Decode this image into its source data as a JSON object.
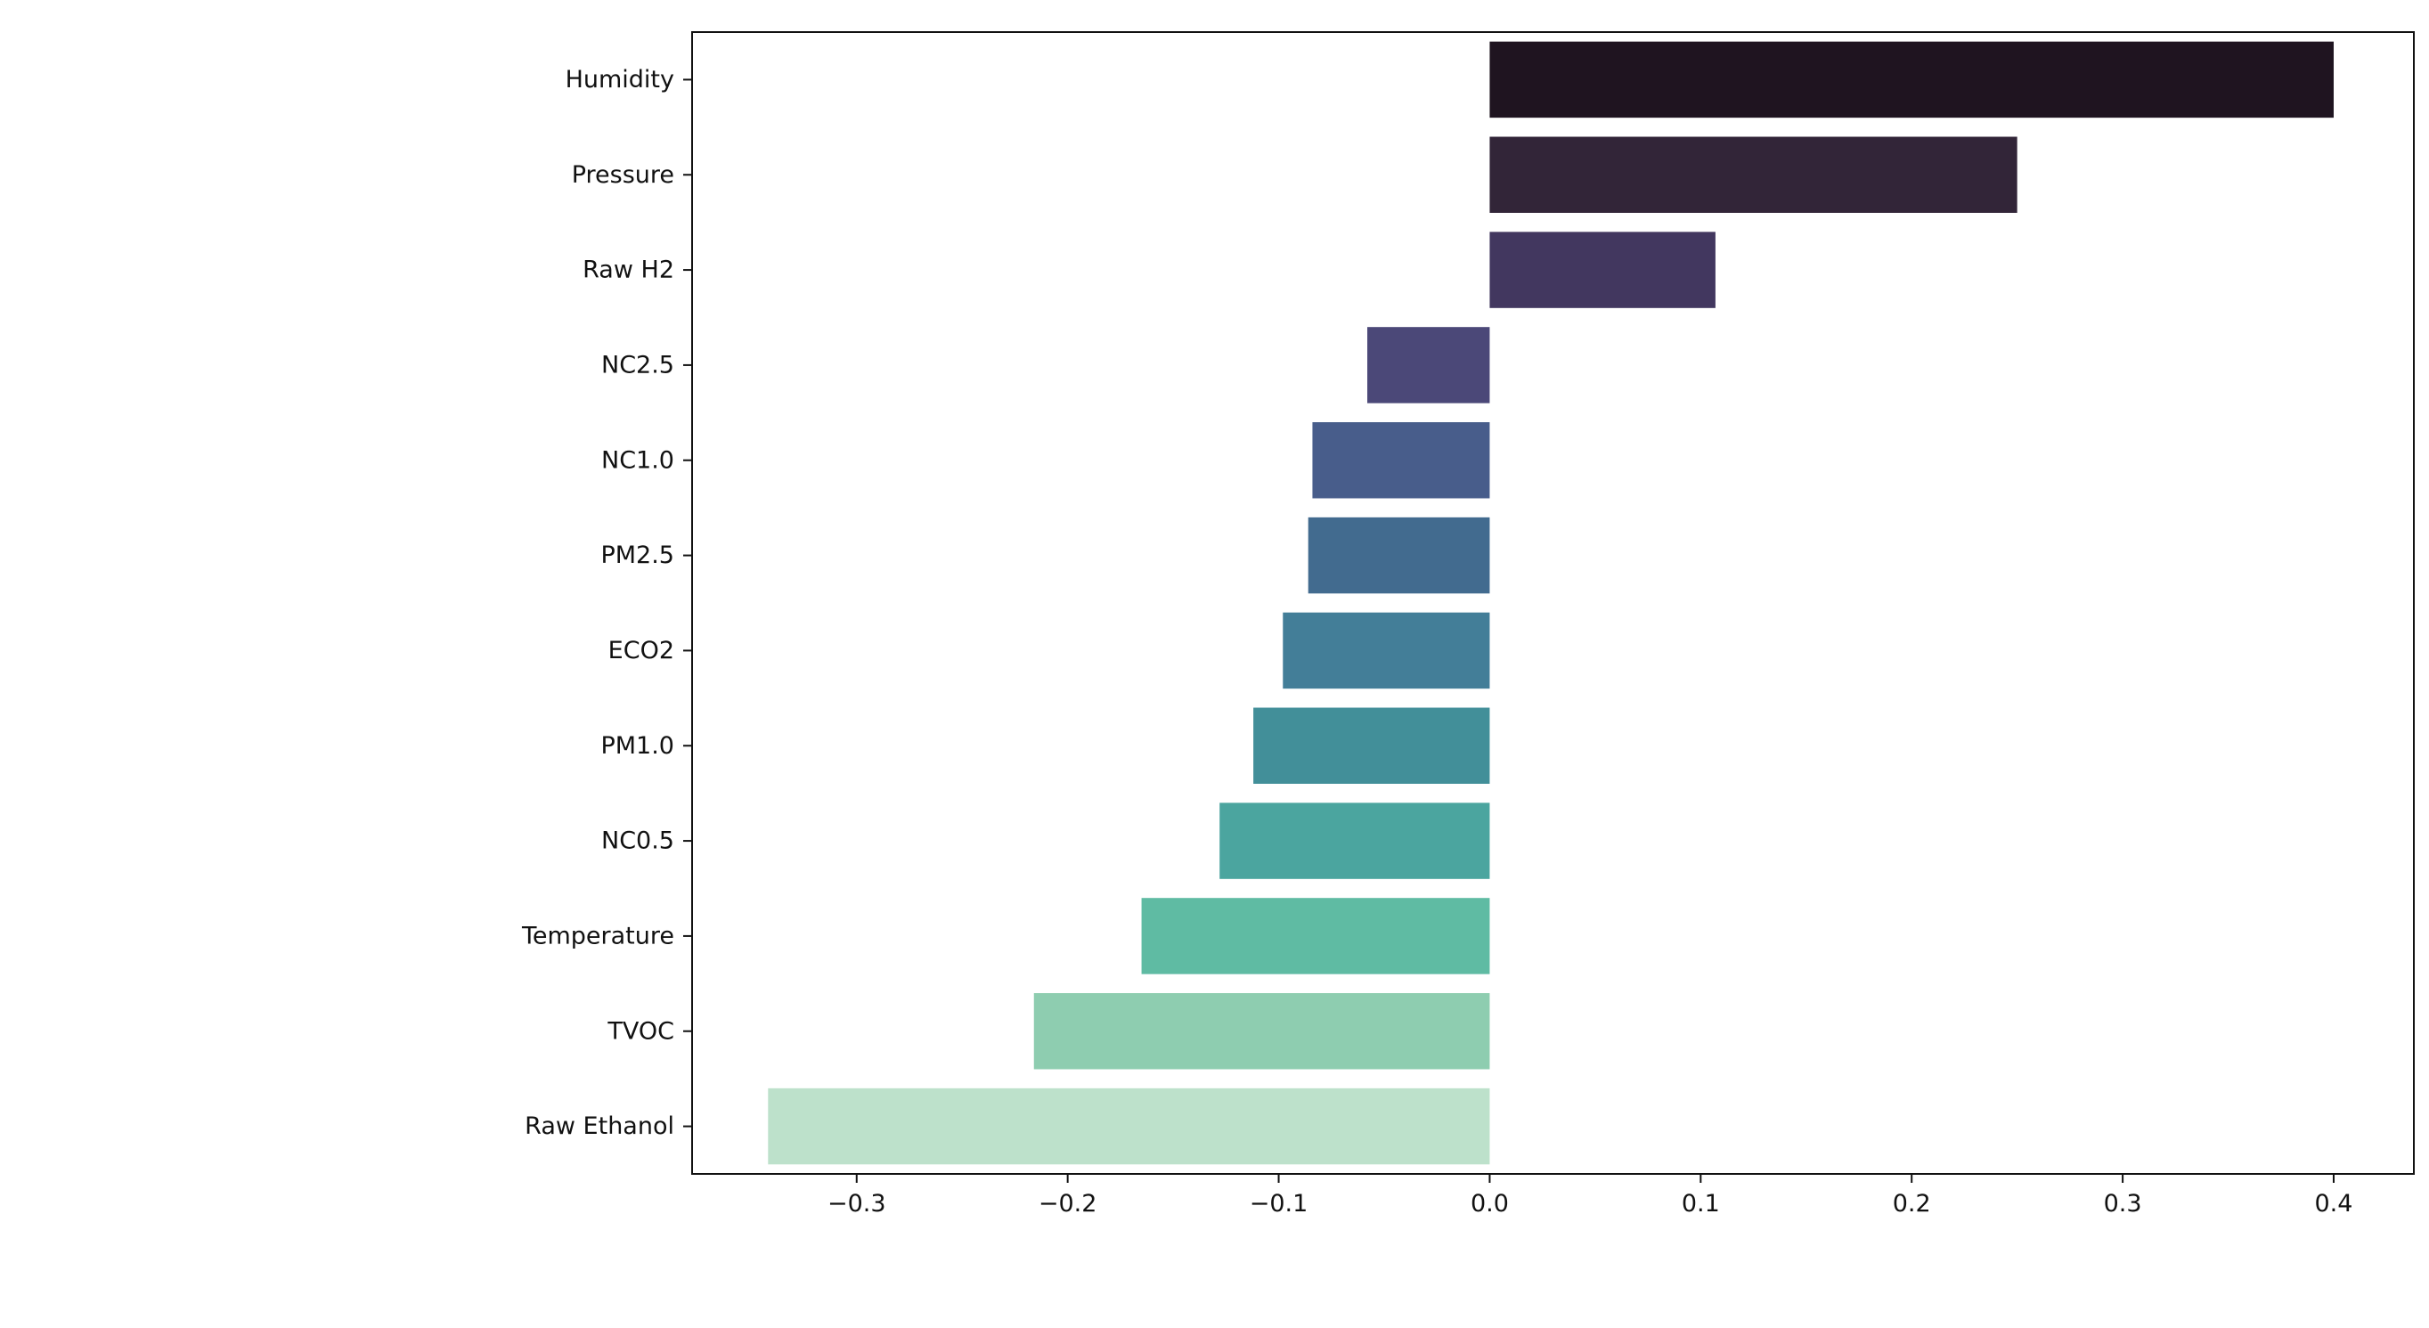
{
  "chart_data": {
    "type": "bar",
    "orientation": "horizontal",
    "categories": [
      "Humidity",
      "Pressure",
      "Raw H2",
      "NC2.5",
      "NC1.0",
      "PM2.5",
      "ECO2",
      "PM1.0",
      "NC0.5",
      "Temperature",
      "TVOC",
      "Raw Ethanol"
    ],
    "values": [
      0.4,
      0.25,
      0.107,
      -0.058,
      -0.084,
      -0.086,
      -0.098,
      -0.112,
      -0.128,
      -0.165,
      -0.216,
      -0.342
    ],
    "colors": [
      "#1f1420",
      "#322538",
      "#42375f",
      "#4b4878",
      "#485d8b",
      "#426b8f",
      "#437e98",
      "#428f99",
      "#4ba59f",
      "#5fbba3",
      "#8ecdb0",
      "#bde1cb"
    ],
    "title": "",
    "xlabel": "",
    "ylabel": "",
    "xlim": [
      -0.378,
      0.438
    ],
    "xticks": [
      -0.3,
      -0.2,
      -0.1,
      0.0,
      0.1,
      0.2,
      0.3,
      0.4
    ],
    "xtick_labels": [
      "−0.3",
      "−0.2",
      "−0.1",
      "0.0",
      "0.1",
      "0.2",
      "0.3",
      "0.4"
    ],
    "grid": false,
    "legend": "none"
  }
}
